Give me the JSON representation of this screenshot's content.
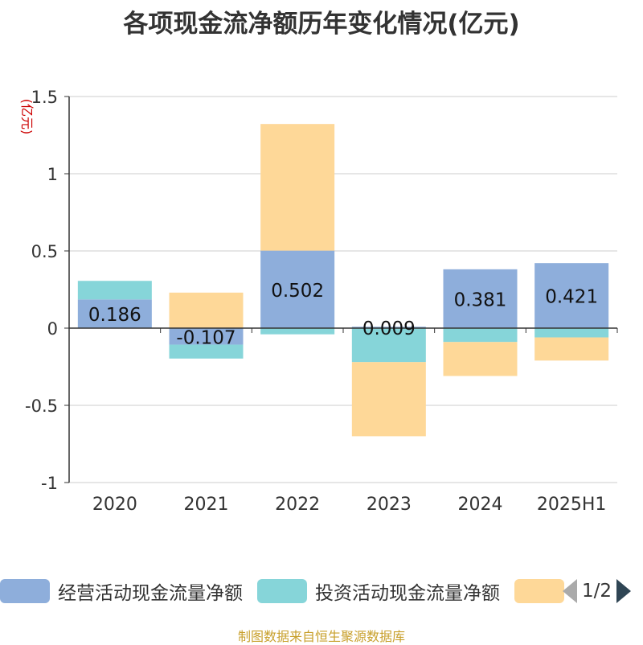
{
  "chart_data": {
    "type": "bar",
    "stacked": true,
    "title": "各项现金流净额历年变化情况(亿元)",
    "ylabel": "(亿元)",
    "categories": [
      "2020",
      "2021",
      "2022",
      "2023",
      "2024",
      "2025H1"
    ],
    "ylim": [
      -1,
      1.5
    ],
    "yticks": [
      -1,
      -0.5,
      0,
      0.5,
      1,
      1.5
    ],
    "ytick_labels": [
      "-1",
      "-0.5",
      "0",
      "0.5",
      "1",
      "1.5"
    ],
    "grid": true,
    "legend_position": "bottom",
    "series": [
      {
        "name": "经营活动现金流量净额",
        "color": "#8eaedb",
        "values": [
          0.186,
          -0.107,
          0.502,
          0.009,
          0.381,
          0.421
        ],
        "labels": [
          "0.186",
          "-0.107",
          "0.502",
          "0.009",
          "0.381",
          "0.421"
        ]
      },
      {
        "name": "投资活动现金流量净额",
        "color": "#86d5d9",
        "values": [
          0.12,
          -0.09,
          -0.04,
          -0.22,
          -0.09,
          -0.06
        ]
      },
      {
        "name": "",
        "color": "#fed898",
        "values": [
          0.0,
          0.23,
          0.82,
          -0.48,
          -0.22,
          -0.15
        ]
      }
    ]
  },
  "legend": {
    "items": [
      {
        "label": "经营活动现金流量净额",
        "color": "#8eaedb"
      },
      {
        "label": "投资活动现金流量净额",
        "color": "#86d5d9"
      },
      {
        "label": "",
        "color": "#fed898"
      }
    ],
    "pager": "1/2"
  },
  "footer": {
    "source": "制图数据来自恒生聚源数据库"
  }
}
